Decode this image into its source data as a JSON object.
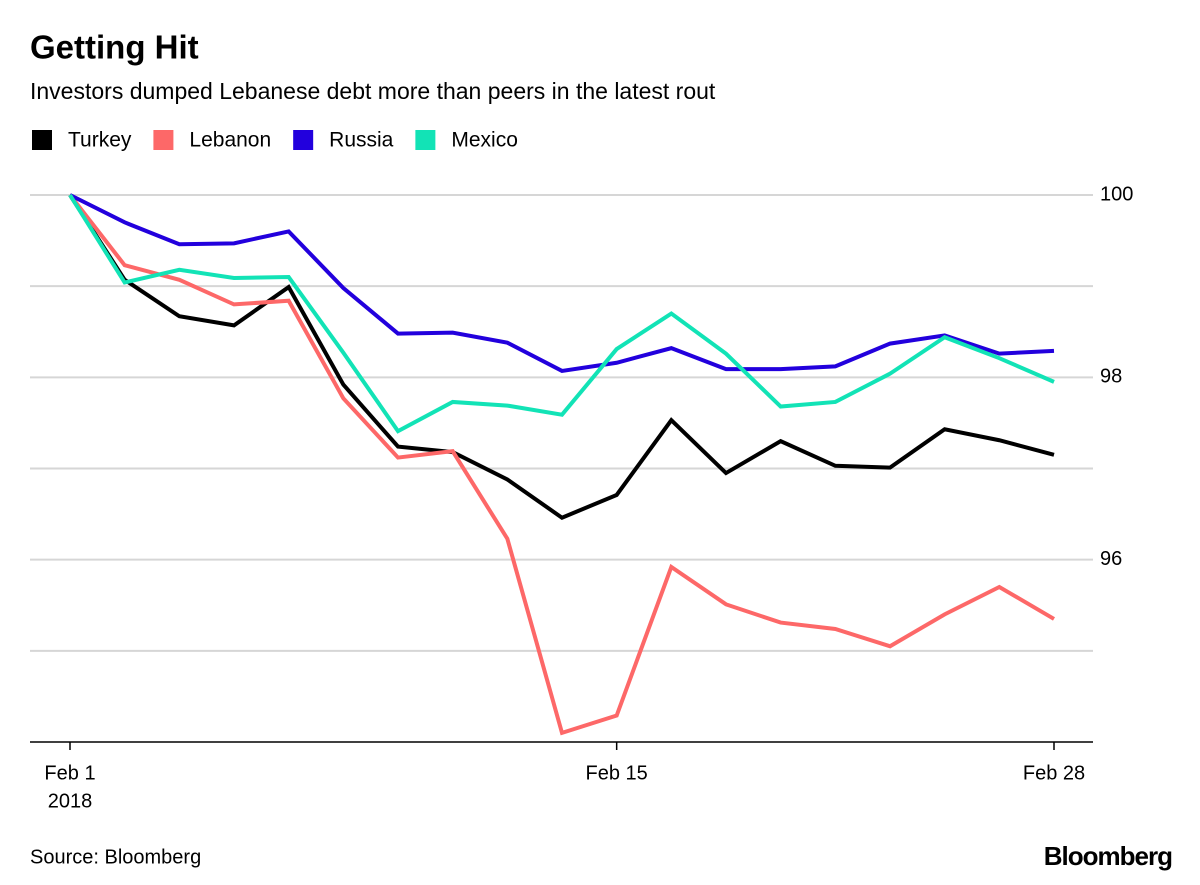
{
  "chart_data": {
    "type": "line",
    "title": "Getting Hit",
    "subtitle": "Investors dumped Lebanese debt more than peers in the latest rout",
    "source": "Source: Bloomberg",
    "brand": "Bloomberg",
    "categories": [
      "Feb 1",
      null,
      null,
      null,
      null,
      null,
      null,
      null,
      null,
      null,
      "Feb 15",
      null,
      null,
      null,
      null,
      null,
      null,
      null,
      "Feb 28"
    ],
    "x_year": "2018",
    "series": [
      {
        "name": "Turkey",
        "color": "#000000",
        "values": [
          100,
          99.07,
          98.67,
          98.57,
          98.99,
          97.92,
          97.24,
          97.18,
          96.88,
          96.46,
          96.71,
          97.53,
          96.95,
          97.3,
          97.03,
          97.01,
          97.43,
          97.31,
          97.15
        ]
      },
      {
        "name": "Lebanon",
        "color": "#fd6868",
        "values": [
          100,
          99.23,
          99.07,
          98.8,
          98.84,
          97.77,
          97.12,
          97.19,
          96.23,
          94.1,
          94.29,
          95.92,
          95.51,
          95.31,
          95.24,
          95.05,
          95.4,
          95.7,
          95.35
        ]
      },
      {
        "name": "Russia",
        "color": "#2200dd",
        "values": [
          100,
          99.7,
          99.46,
          99.47,
          99.6,
          98.98,
          98.48,
          98.49,
          98.38,
          98.07,
          98.16,
          98.32,
          98.09,
          98.09,
          98.12,
          98.37,
          98.46,
          98.26,
          98.29
        ]
      },
      {
        "name": "Mexico",
        "color": "#12e3b6",
        "values": [
          100,
          99.04,
          99.18,
          99.09,
          99.1,
          98.27,
          97.41,
          97.73,
          97.69,
          97.59,
          98.31,
          98.7,
          98.26,
          97.68,
          97.73,
          98.04,
          98.44,
          98.21,
          97.95
        ]
      }
    ],
    "ylim": [
      94,
      100
    ],
    "yticks": [
      96,
      98,
      100
    ],
    "ygrid": [
      95,
      96,
      97,
      98,
      99,
      100
    ],
    "grid": true
  }
}
